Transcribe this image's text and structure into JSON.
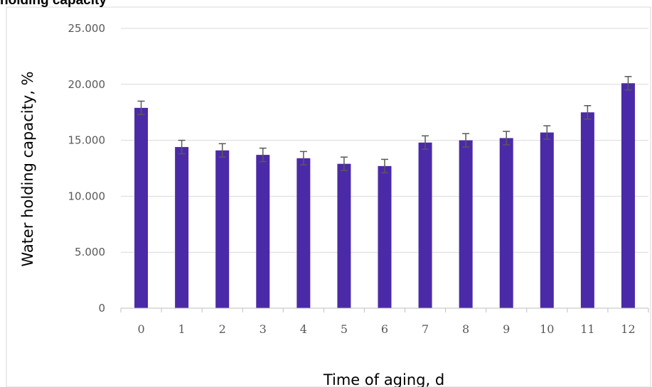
{
  "chart_data": {
    "type": "bar",
    "title": "holding capacity",
    "xlabel": "Time of aging, d",
    "ylabel": "Water holding capacity, %",
    "ylim": [
      0,
      25
    ],
    "yticks": [
      "0",
      "5.000",
      "10.000",
      "15.000",
      "20.000",
      "25.000"
    ],
    "ytick_values": [
      0,
      5,
      10,
      15,
      20,
      25
    ],
    "categories": [
      "0",
      "1",
      "2",
      "3",
      "4",
      "5",
      "6",
      "7",
      "8",
      "9",
      "10",
      "11",
      "12"
    ],
    "values": [
      17.9,
      14.4,
      14.1,
      13.7,
      13.4,
      12.9,
      12.7,
      14.8,
      15.0,
      15.2,
      15.7,
      17.5,
      20.1
    ],
    "errors": [
      0.6,
      0.6,
      0.6,
      0.6,
      0.6,
      0.6,
      0.6,
      0.6,
      0.6,
      0.6,
      0.6,
      0.6,
      0.6
    ],
    "grid": true,
    "legend": "none",
    "bar_color": "#4b2aa8",
    "error_bar_color": "#595959"
  }
}
